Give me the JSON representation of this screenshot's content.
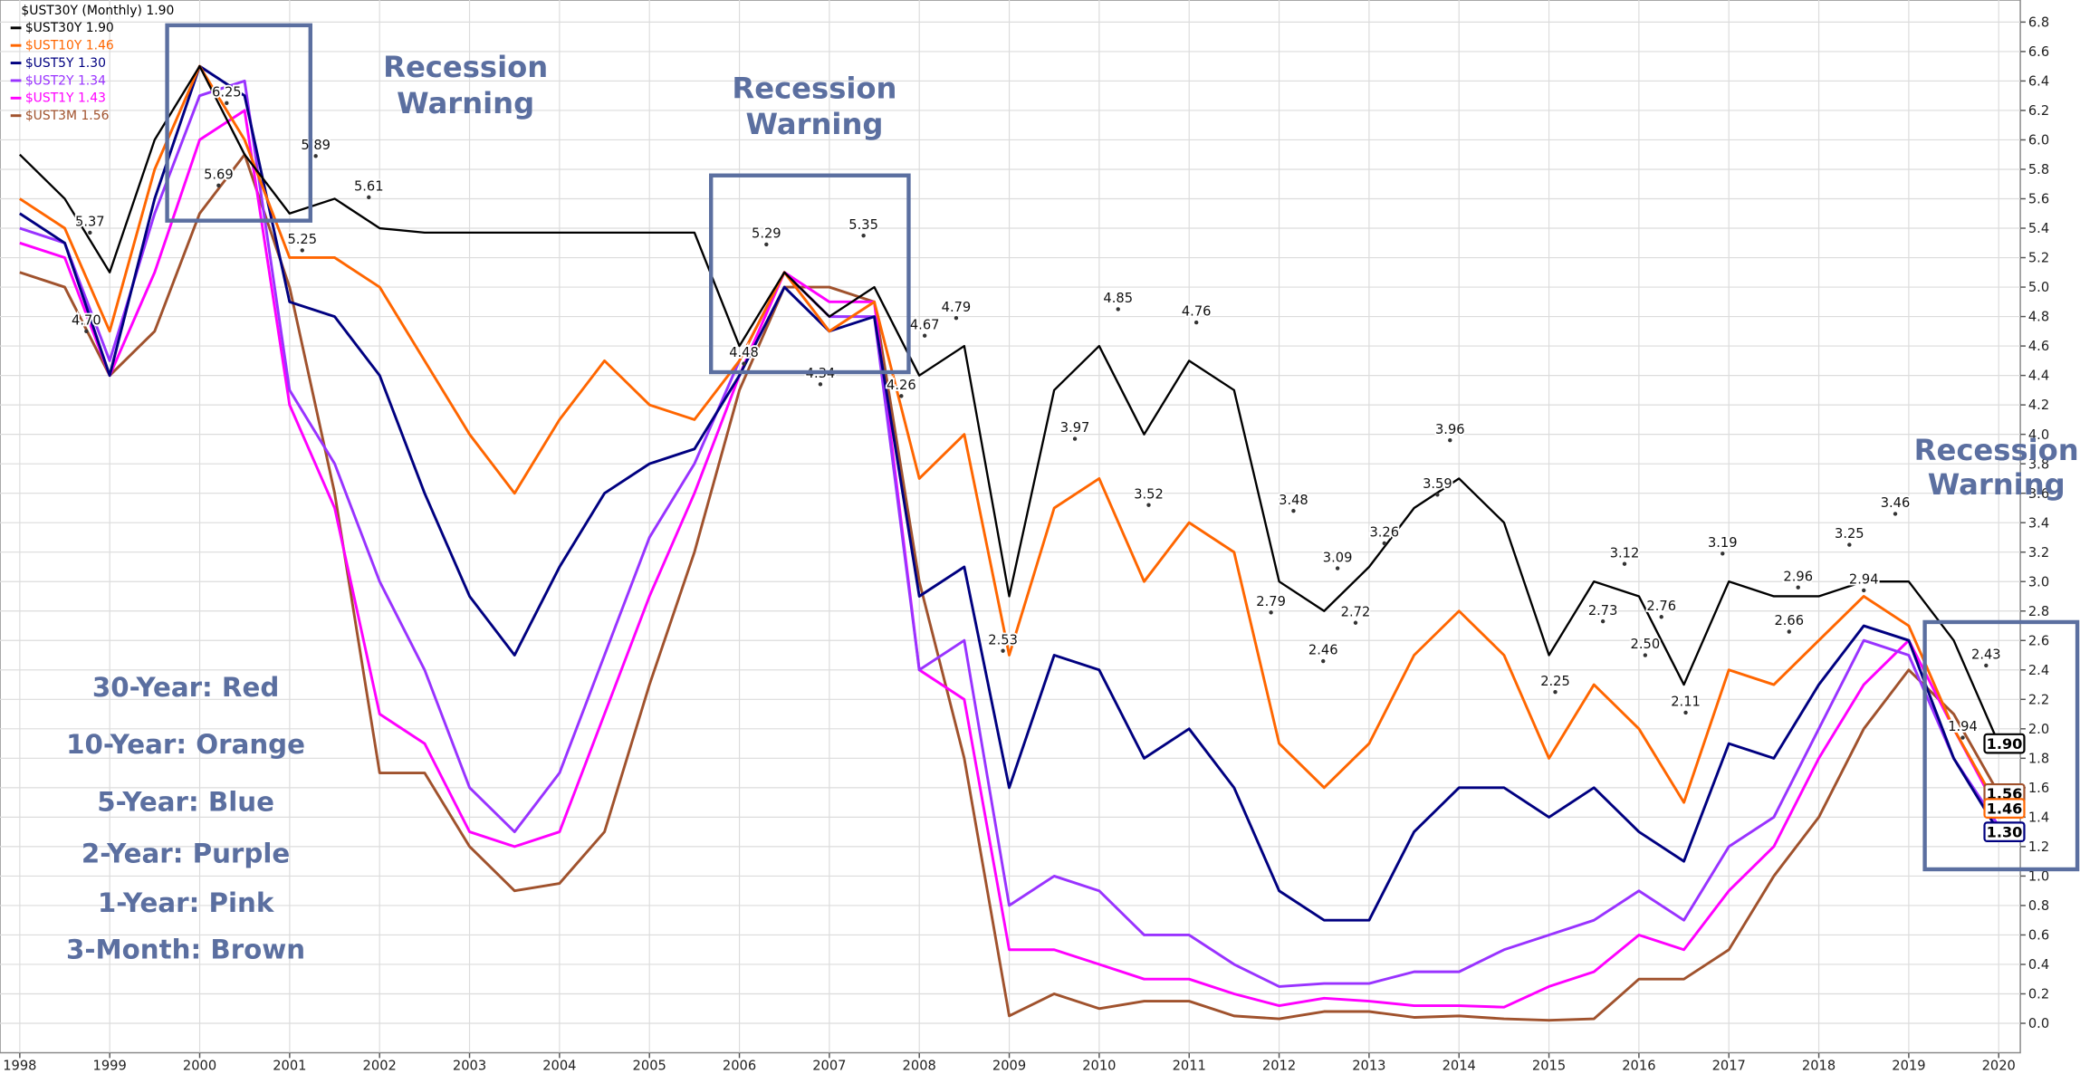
{
  "chart_data": {
    "type": "line",
    "title": "$UST30Y (Monthly) 1.90",
    "x": [
      1998.0,
      1998.5,
      1999.0,
      1999.5,
      2000.0,
      2000.5,
      2001.0,
      2001.5,
      2002.0,
      2002.5,
      2003.0,
      2003.5,
      2004.0,
      2004.5,
      2005.0,
      2005.5,
      2006.0,
      2006.5,
      2007.0,
      2007.5,
      2008.0,
      2008.5,
      2009.0,
      2009.5,
      2010.0,
      2010.5,
      2011.0,
      2011.5,
      2012.0,
      2012.5,
      2013.0,
      2013.5,
      2014.0,
      2014.5,
      2015.0,
      2015.5,
      2016.0,
      2016.5,
      2017.0,
      2017.5,
      2018.0,
      2018.5,
      2019.0,
      2019.5,
      2020.0
    ],
    "series": [
      {
        "name": "$UST30Y 1.90",
        "color": "#000000",
        "values": [
          5.9,
          5.6,
          5.1,
          6.0,
          6.5,
          5.9,
          5.5,
          5.6,
          5.4,
          5.37,
          5.37,
          5.37,
          5.37,
          5.37,
          5.37,
          5.37,
          4.6,
          5.1,
          4.8,
          5.0,
          4.4,
          4.6,
          2.9,
          4.3,
          4.6,
          4.0,
          4.5,
          4.3,
          3.0,
          2.8,
          3.1,
          3.5,
          3.7,
          3.4,
          2.5,
          3.0,
          2.9,
          2.3,
          3.0,
          2.9,
          2.9,
          3.0,
          3.0,
          2.6,
          1.9
        ]
      },
      {
        "name": "$UST10Y 1.46",
        "color": "#ff6600",
        "values": [
          5.6,
          5.4,
          4.7,
          5.8,
          6.5,
          6.0,
          5.2,
          5.2,
          5.0,
          4.5,
          4.0,
          3.6,
          4.1,
          4.5,
          4.2,
          4.1,
          4.5,
          5.1,
          4.7,
          4.9,
          3.7,
          4.0,
          2.5,
          3.5,
          3.7,
          3.0,
          3.4,
          3.2,
          1.9,
          1.6,
          1.9,
          2.5,
          2.8,
          2.5,
          1.8,
          2.3,
          2.0,
          1.5,
          2.4,
          2.3,
          2.6,
          2.9,
          2.7,
          2.0,
          1.46
        ]
      },
      {
        "name": "$UST5Y 1.30",
        "color": "#000080",
        "values": [
          5.5,
          5.3,
          4.4,
          5.6,
          6.5,
          6.3,
          4.9,
          4.8,
          4.4,
          3.6,
          2.9,
          2.5,
          3.1,
          3.6,
          3.8,
          3.9,
          4.4,
          5.0,
          4.7,
          4.8,
          2.9,
          3.1,
          1.6,
          2.5,
          2.4,
          1.8,
          2.0,
          1.6,
          0.9,
          0.7,
          0.7,
          1.3,
          1.6,
          1.6,
          1.4,
          1.6,
          1.3,
          1.1,
          1.9,
          1.8,
          2.3,
          2.7,
          2.6,
          1.8,
          1.3
        ]
      },
      {
        "name": "$UST2Y 1.34",
        "color": "#9933ff",
        "values": [
          5.4,
          5.3,
          4.5,
          5.5,
          6.3,
          6.4,
          4.3,
          3.8,
          3.0,
          2.4,
          1.6,
          1.3,
          1.7,
          2.5,
          3.3,
          3.8,
          4.5,
          5.1,
          4.8,
          4.8,
          2.4,
          2.6,
          0.8,
          1.0,
          0.9,
          0.6,
          0.6,
          0.4,
          0.25,
          0.27,
          0.27,
          0.35,
          0.35,
          0.5,
          0.6,
          0.7,
          0.9,
          0.7,
          1.2,
          1.4,
          2.0,
          2.6,
          2.5,
          1.8,
          1.34
        ]
      },
      {
        "name": "$UST1Y 1.43",
        "color": "#ff00ff",
        "values": [
          5.3,
          5.2,
          4.4,
          5.1,
          6.0,
          6.2,
          4.2,
          3.5,
          2.1,
          1.9,
          1.3,
          1.2,
          1.3,
          2.1,
          2.9,
          3.6,
          4.4,
          5.1,
          4.9,
          4.9,
          2.4,
          2.2,
          0.5,
          0.5,
          0.4,
          0.3,
          0.3,
          0.2,
          0.12,
          0.17,
          0.15,
          0.12,
          0.12,
          0.11,
          0.25,
          0.35,
          0.6,
          0.5,
          0.9,
          1.2,
          1.8,
          2.3,
          2.6,
          2.0,
          1.43
        ]
      },
      {
        "name": "$UST3M 1.56",
        "color": "#a0522d",
        "values": [
          5.1,
          5.0,
          4.4,
          4.7,
          5.5,
          5.9,
          5.0,
          3.6,
          1.7,
          1.7,
          1.2,
          0.9,
          0.95,
          1.3,
          2.3,
          3.2,
          4.3,
          5.0,
          5.0,
          4.9,
          3.0,
          1.8,
          0.05,
          0.2,
          0.1,
          0.15,
          0.15,
          0.05,
          0.03,
          0.08,
          0.08,
          0.04,
          0.05,
          0.03,
          0.02,
          0.03,
          0.3,
          0.3,
          0.5,
          1.0,
          1.4,
          2.0,
          2.4,
          2.1,
          1.56
        ]
      }
    ],
    "xlim": [
      1997.78,
      2020.24
    ],
    "xticks": [
      1998,
      1999,
      2000,
      2001,
      2002,
      2003,
      2004,
      2005,
      2006,
      2007,
      2008,
      2009,
      2010,
      2011,
      2012,
      2013,
      2014,
      2015,
      2016,
      2017,
      2018,
      2019,
      2020
    ],
    "ylim": [
      -0.2,
      6.95
    ],
    "yticks": [
      {
        "value": 0,
        "label": "0.0"
      },
      0.2,
      0.4,
      0.6,
      0.8,
      {
        "value": 1,
        "label": "1.0"
      },
      1.2,
      1.4,
      1.6,
      1.8,
      {
        "value": 2,
        "label": "2.0"
      },
      2.2,
      2.4,
      2.6,
      2.8,
      {
        "value": 3,
        "label": "3.0"
      },
      3.2,
      3.4,
      3.6,
      3.8,
      {
        "value": 4,
        "label": "4.0"
      },
      4.2,
      4.4,
      4.6,
      4.8,
      {
        "value": 5,
        "label": "5.0"
      },
      5.2,
      5.4,
      5.6,
      5.8,
      {
        "value": 6,
        "label": "6.0"
      },
      6.2,
      6.4,
      6.6,
      6.8
    ],
    "grid": true,
    "point_labels": [
      {
        "x": 1998.78,
        "value": 5.37
      },
      {
        "x": 1998.74,
        "value": 4.7,
        "label": "4.70"
      },
      {
        "x": 2000.3,
        "value": 6.25
      },
      {
        "x": 2000.21,
        "value": 5.69
      },
      {
        "x": 2001.29,
        "value": 5.89
      },
      {
        "x": 2001.14,
        "value": 5.25
      },
      {
        "x": 2001.88,
        "value": 5.61
      },
      {
        "x": 2006.3,
        "value": 5.29
      },
      {
        "x": 2006.05,
        "value": 4.48
      },
      {
        "x": 2006.9,
        "value": 4.34
      },
      {
        "x": 2007.38,
        "value": 5.35
      },
      {
        "x": 2008.06,
        "value": 4.67
      },
      {
        "x": 2007.8,
        "value": 4.26
      },
      {
        "x": 2008.41,
        "value": 4.79
      },
      {
        "x": 2008.93,
        "value": 2.53
      },
      {
        "x": 2009.73,
        "value": 3.97
      },
      {
        "x": 2010.21,
        "value": 4.85
      },
      {
        "x": 2010.55,
        "value": 3.52
      },
      {
        "x": 2011.08,
        "value": 4.76
      },
      {
        "x": 2012.16,
        "value": 3.48
      },
      {
        "x": 2011.91,
        "value": 2.79
      },
      {
        "x": 2012.49,
        "value": 2.46
      },
      {
        "x": 2012.65,
        "value": 3.09
      },
      {
        "x": 2012.85,
        "value": 2.72
      },
      {
        "x": 2013.17,
        "value": 3.26
      },
      {
        "x": 2013.76,
        "value": 3.59
      },
      {
        "x": 2013.9,
        "value": 3.96
      },
      {
        "x": 2015.07,
        "value": 2.25
      },
      {
        "x": 2015.84,
        "value": 3.12
      },
      {
        "x": 2015.6,
        "value": 2.73
      },
      {
        "x": 2016.25,
        "value": 2.76
      },
      {
        "x": 2016.07,
        "value": 2.5,
        "label": "2.50"
      },
      {
        "x": 2016.52,
        "value": 2.11
      },
      {
        "x": 2016.93,
        "value": 3.19
      },
      {
        "x": 2017.77,
        "value": 2.96
      },
      {
        "x": 2017.67,
        "value": 2.66
      },
      {
        "x": 2018.34,
        "value": 3.25
      },
      {
        "x": 2018.5,
        "value": 2.94
      },
      {
        "x": 2018.85,
        "value": 3.46
      },
      {
        "x": 2019.86,
        "value": 2.43
      },
      {
        "x": 2019.6,
        "value": 1.94
      }
    ],
    "end_labels": [
      {
        "value": 1.9,
        "label": "1.90",
        "color": "#000000"
      },
      {
        "value": 1.56,
        "label": "1.56",
        "color": "#a0522d"
      },
      {
        "value": 1.46,
        "label": "1.46",
        "color": "#ff6600"
      },
      {
        "value": 1.3,
        "label": "1.30",
        "color": "#000080"
      }
    ],
    "key_notes": [
      "30-Year: Red",
      "10-Year: Orange",
      "5-Year: Blue",
      "2-Year: Purple",
      "1-Year: Pink",
      "3-Month: Brown"
    ],
    "recession_notes": [
      [
        "Recession",
        "Warning"
      ],
      [
        "Recession",
        "Warning"
      ],
      [
        "Recession",
        "Warning"
      ]
    ]
  }
}
